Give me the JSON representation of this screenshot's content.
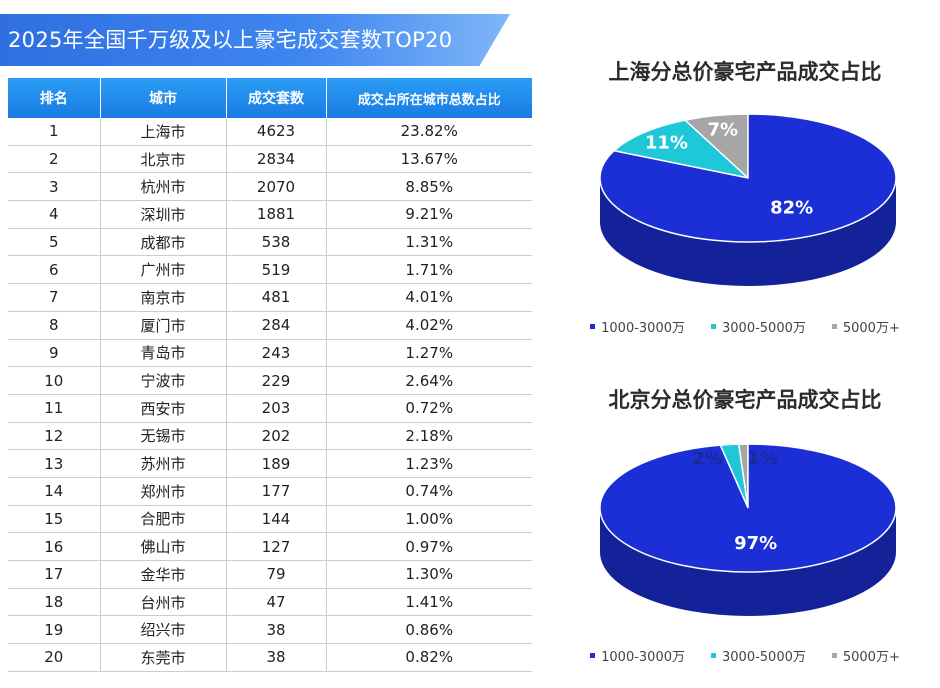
{
  "header": {
    "title": "2025年全国千万级及以上豪宅成交套数TOP20"
  },
  "table": {
    "columns": [
      "排名",
      "城市",
      "成交套数",
      "成交占所在城市总数占比"
    ],
    "rows": [
      [
        "1",
        "上海市",
        "4623",
        "23.82%"
      ],
      [
        "2",
        "北京市",
        "2834",
        "13.67%"
      ],
      [
        "3",
        "杭州市",
        "2070",
        "8.85%"
      ],
      [
        "4",
        "深圳市",
        "1881",
        "9.21%"
      ],
      [
        "5",
        "成都市",
        "538",
        "1.31%"
      ],
      [
        "6",
        "广州市",
        "519",
        "1.71%"
      ],
      [
        "7",
        "南京市",
        "481",
        "4.01%"
      ],
      [
        "8",
        "厦门市",
        "284",
        "4.02%"
      ],
      [
        "9",
        "青岛市",
        "243",
        "1.27%"
      ],
      [
        "10",
        "宁波市",
        "229",
        "2.64%"
      ],
      [
        "11",
        "西安市",
        "203",
        "0.72%"
      ],
      [
        "12",
        "无锡市",
        "202",
        "2.18%"
      ],
      [
        "13",
        "苏州市",
        "189",
        "1.23%"
      ],
      [
        "14",
        "郑州市",
        "177",
        "0.74%"
      ],
      [
        "15",
        "合肥市",
        "144",
        "1.00%"
      ],
      [
        "16",
        "佛山市",
        "127",
        "0.97%"
      ],
      [
        "17",
        "金华市",
        "79",
        "1.30%"
      ],
      [
        "18",
        "台州市",
        "47",
        "1.41%"
      ],
      [
        "19",
        "绍兴市",
        "38",
        "0.86%"
      ],
      [
        "20",
        "东莞市",
        "38",
        "0.82%"
      ]
    ]
  },
  "colors": {
    "slice1": "#1c2fd6",
    "slice2": "#1fc8d8",
    "slice3": "#a6a6a6",
    "header": "#1a7be3"
  },
  "chart_data": [
    {
      "type": "table",
      "title": "2025年全国千万级及以上豪宅成交套数TOP20",
      "columns": [
        "排名",
        "城市",
        "成交套数",
        "成交占所在城市总数占比"
      ]
    },
    {
      "type": "pie",
      "title": "上海分总价豪宅产品成交占比",
      "categories": [
        "1000-3000万",
        "3000-5000万",
        "5000万+"
      ],
      "values": [
        82,
        11,
        7
      ],
      "labels": [
        "82%",
        "11%",
        "7%"
      ],
      "legend": "bottom"
    },
    {
      "type": "pie",
      "title": "北京分总价豪宅产品成交占比",
      "categories": [
        "1000-3000万",
        "3000-5000万",
        "5000万+"
      ],
      "values": [
        97,
        2,
        1
      ],
      "labels": [
        "97%",
        "2%",
        "1%"
      ],
      "legend": "bottom"
    }
  ]
}
